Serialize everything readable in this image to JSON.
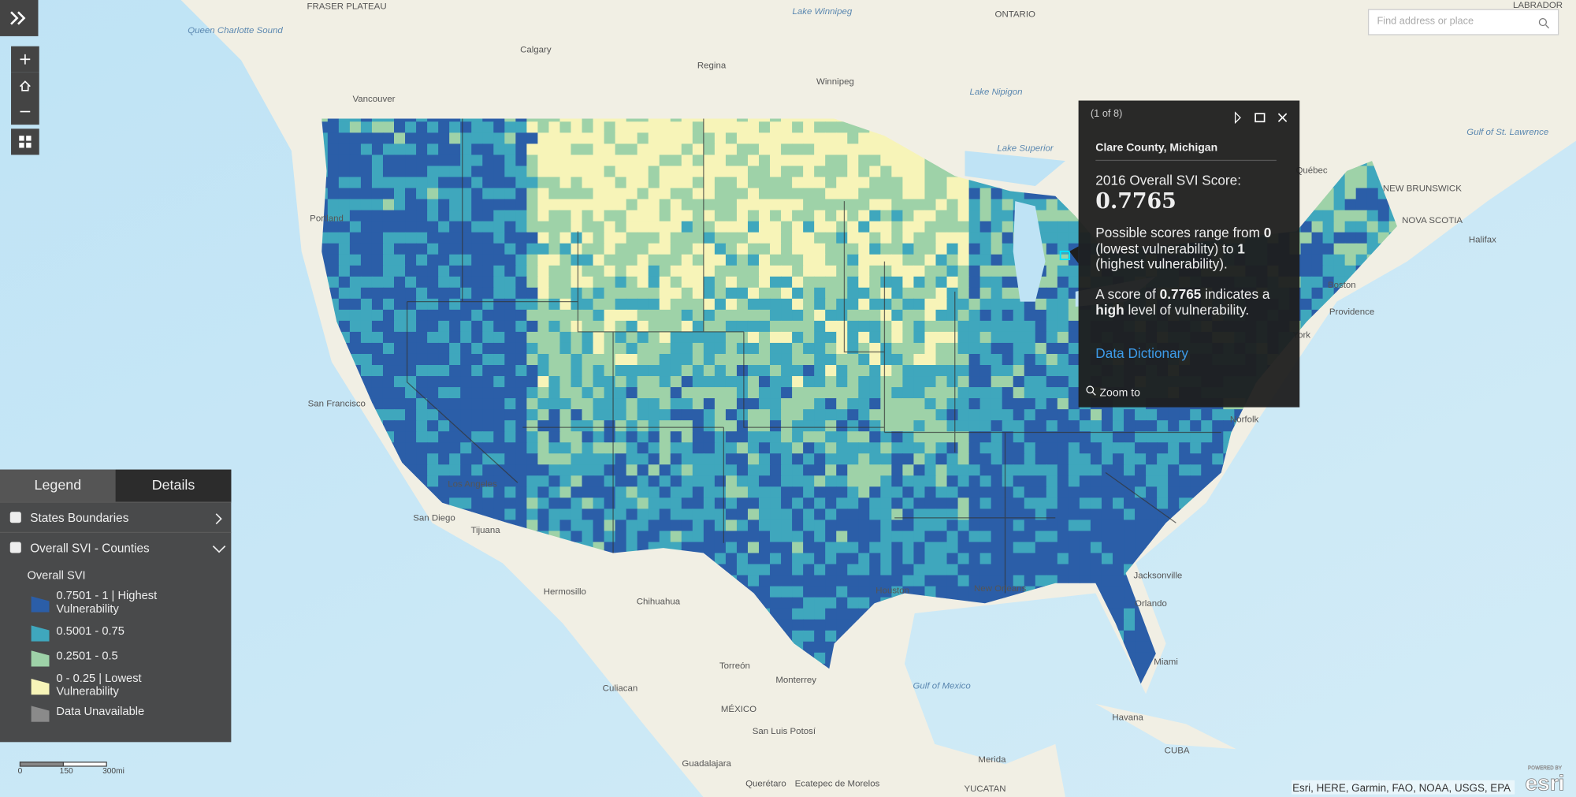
{
  "search": {
    "placeholder": "Find address or place"
  },
  "popup": {
    "counter": "(1 of 8)",
    "title": "Clare County, Michigan",
    "score_label": "2016 Overall SVI Score:",
    "score": "0.7765",
    "range_parts": [
      "Possible scores range from ",
      "0",
      " (lowest vulnerability) to ",
      "1",
      " (highest vulnerability)."
    ],
    "level_parts": [
      "A score of ",
      "0.7765",
      " indicates a ",
      "high",
      " level of vulnerability."
    ],
    "link": "Data Dictionary",
    "zoom": "Zoom to"
  },
  "legend": {
    "tabs": [
      "Legend",
      "Details"
    ],
    "layers": [
      "States Boundaries",
      "Overall SVI - Counties"
    ],
    "heading": "Overall SVI",
    "items": [
      {
        "label": "0.7501 - 1 | Highest Vulnerability",
        "color": "#2b5ea8"
      },
      {
        "label": "0.5001 - 0.75",
        "color": "#3fa7bd"
      },
      {
        "label": "0.2501 - 0.5",
        "color": "#9ed2a8"
      },
      {
        "label": "0 - 0.25 | Lowest Vulnerability",
        "color": "#f7f4b8"
      },
      {
        "label": "Data Unavailable",
        "color": "#8a8a8a"
      }
    ]
  },
  "scale": {
    "labels": [
      "0",
      "150",
      "300mi"
    ]
  },
  "attribution": "Esri, HERE, Garmin, FAO, NOAA, USGS, EPA",
  "logo": {
    "top": "POWERED BY",
    "brand": "esri"
  },
  "map_labels": [
    "FRASER PLATEAU",
    "Calgary",
    "Regina",
    "Winnipeg",
    "Lake Winnipeg",
    "ONTARIO",
    "Vancouver",
    "Lake Superior",
    "Lake Nipigon",
    "Québec",
    "NEW BRUNSWICK",
    "NOVA SCOTIA",
    "Halifax",
    "Gulf of St. Lawrence",
    "Boston",
    "Providence",
    "York",
    "Norfolk",
    "San Francisco",
    "Los Angeles",
    "San Diego",
    "Tijuana",
    "Hermosillo",
    "Chihuahua",
    "Houston",
    "New Orleans",
    "Jacksonville",
    "Orlando",
    "Miami",
    "Torreón",
    "Monterrey",
    "Culiacan",
    "MÉXICO",
    "Gulf of Mexico",
    "San Luis Potosí",
    "Guadalajara",
    "Querétaro",
    "Ecatepec de Morelos",
    "Havana",
    "CUBA",
    "Merida",
    "YUCATAN",
    "Portland",
    "Queen Charlotte Sound",
    "LABRADOR"
  ]
}
